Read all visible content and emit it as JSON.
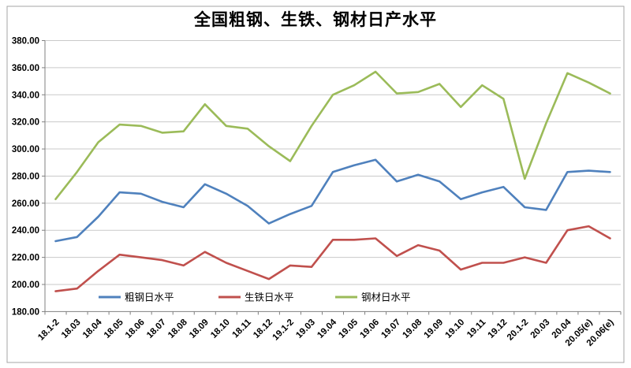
{
  "chart_data": {
    "type": "line",
    "title": "全国粗钢、生铁、钢材日产水平",
    "categories": [
      "18.1-2",
      "18.03",
      "18.04",
      "18.05",
      "18.06",
      "18.07",
      "18.08",
      "18.09",
      "18.10",
      "18.11",
      "18.12",
      "19.1-2",
      "19.03",
      "19.04",
      "19.05",
      "19.06",
      "19.07",
      "19.08",
      "19.09",
      "19.10",
      "19.11",
      "19.12",
      "20.1-2",
      "20.03",
      "20.04",
      "20.05(e)",
      "20.06(e)"
    ],
    "series": [
      {
        "key": "crude-steel",
        "name": "粗钢日水平",
        "color": "#4F81BD",
        "values": [
          232,
          235,
          250,
          268,
          267,
          261,
          257,
          274,
          267,
          258,
          245,
          252,
          258,
          283,
          288,
          292,
          276,
          281,
          276,
          263,
          268,
          272,
          257,
          255,
          283,
          284,
          283
        ]
      },
      {
        "key": "pig-iron",
        "name": "生铁日水平",
        "color": "#C0504D",
        "values": [
          195,
          197,
          210,
          222,
          220,
          218,
          214,
          224,
          216,
          210,
          204,
          214,
          213,
          233,
          233,
          234,
          221,
          229,
          225,
          211,
          216,
          216,
          220,
          216,
          240,
          243,
          234
        ]
      },
      {
        "key": "steel-products",
        "name": "钢材日水平",
        "color": "#9BBB59",
        "values": [
          263,
          283,
          305,
          318,
          317,
          312,
          313,
          333,
          317,
          315,
          302,
          291,
          317,
          340,
          347,
          357,
          341,
          342,
          348,
          331,
          347,
          337,
          278,
          319,
          356,
          349,
          341
        ]
      }
    ],
    "ylim": [
      180,
      380
    ],
    "y_tick_step": 20,
    "y_tick_labels": [
      "180.00",
      "200.00",
      "220.00",
      "240.00",
      "260.00",
      "280.00",
      "300.00",
      "320.00",
      "340.00",
      "360.00",
      "380.00"
    ],
    "grid": "horizontal",
    "legend_position": "bottom-inside",
    "colors": {
      "gridline": "#C9C9C9",
      "axis": "#808080",
      "border": "#A6A6A6",
      "text": "#000000"
    }
  }
}
